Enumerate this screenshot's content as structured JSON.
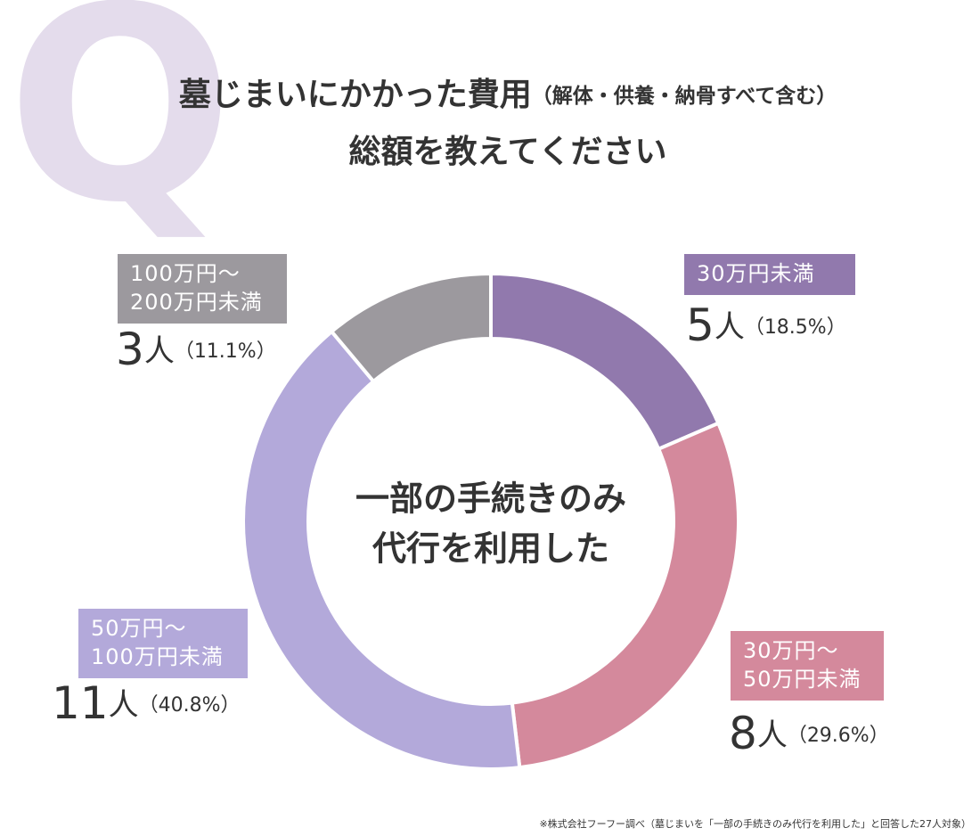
{
  "chart_data": {
    "type": "donut",
    "q_mark": "Q",
    "title": "墓じまいにかかった費用",
    "title_note": "（解体・供養・納骨すべて含む）",
    "subtitle": "総額を教えてください",
    "center_text": [
      "一部の手続きのみ",
      "代行を利用した"
    ],
    "categories": [
      [
        "30万円未満"
      ],
      [
        "30万円〜",
        "50万円未満"
      ],
      [
        "50万円〜",
        "100万円未満"
      ],
      [
        "100万円〜",
        "200万円未満"
      ]
    ],
    "values": [
      5,
      8,
      11,
      3
    ],
    "unit": "人",
    "percents": [
      18.5,
      29.6,
      40.8,
      11.1
    ],
    "percent_labels": [
      "（18.5%）",
      "（29.6%）",
      "（40.8%）",
      "（11.1%）"
    ],
    "colors": [
      "#9179ad",
      "#d4899c",
      "#b3a9da",
      "#9c999e"
    ],
    "footnote": "※株式会社フーフー調べ（墓じまいを「一部の手続きのみ代行を利用した」と回答した27人対象）"
  }
}
